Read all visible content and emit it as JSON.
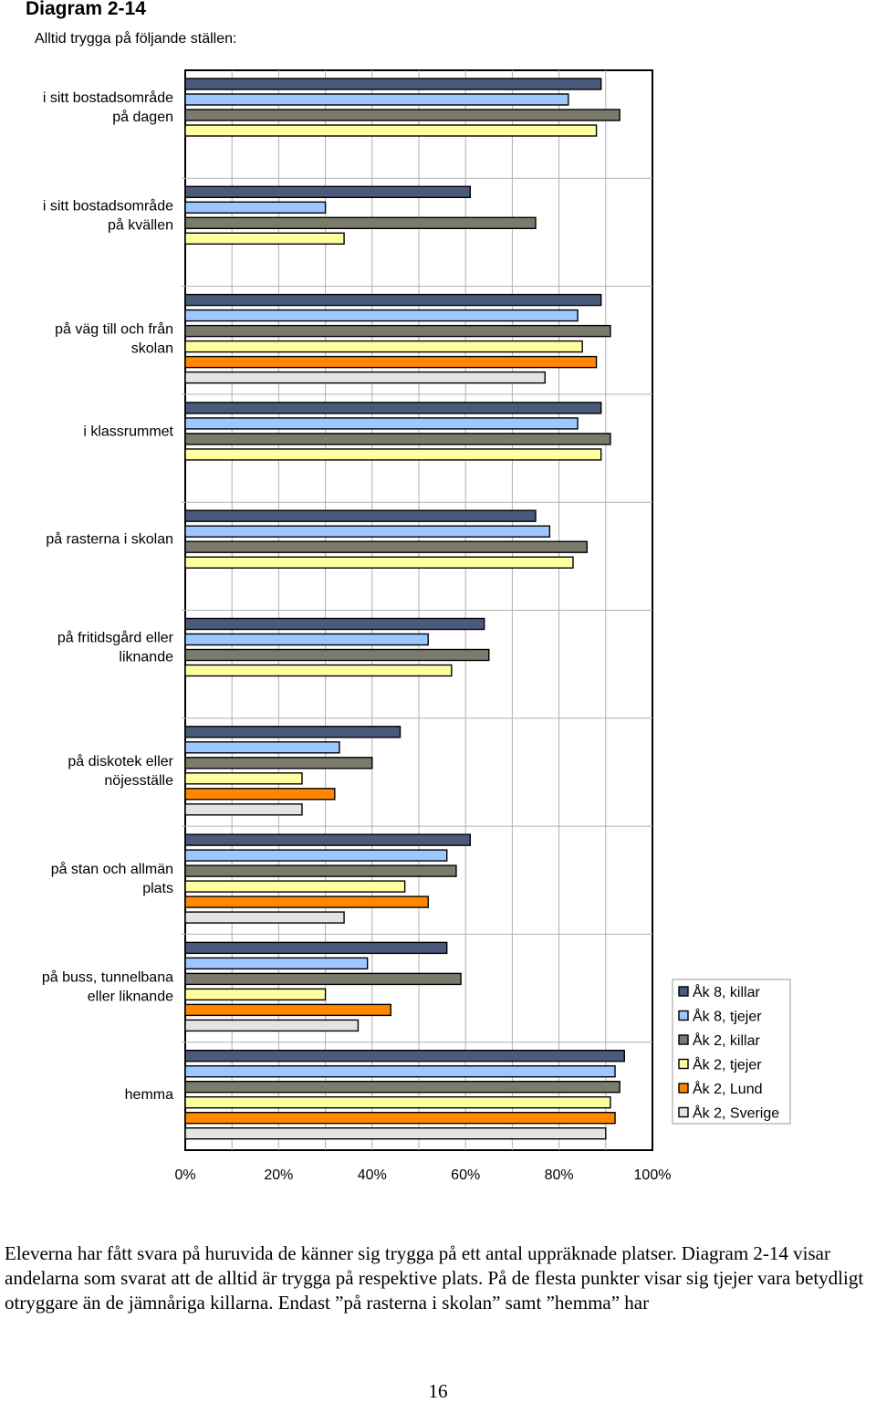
{
  "heading": "Diagram 2-14",
  "chart_data": {
    "type": "bar",
    "orientation": "horizontal",
    "title": "Alltid trygga på följande ställen:",
    "xlabel": "",
    "ylabel": "",
    "xlim": [
      0,
      100
    ],
    "x_tick_labels": [
      "0%",
      "20%",
      "40%",
      "60%",
      "80%",
      "100%"
    ],
    "grid": true,
    "legend_position": "right",
    "categories": [
      [
        "i sitt bostadsområde",
        "på dagen"
      ],
      [
        "i sitt bostadsområde",
        "på kvällen"
      ],
      [
        "på väg till och från",
        "skolan"
      ],
      [
        "i klassrummet"
      ],
      [
        "på rasterna i skolan"
      ],
      [
        "på fritidsgård eller",
        "liknande"
      ],
      [
        "på diskotek eller",
        "nöjesställe"
      ],
      [
        "på stan och allmän",
        "plats"
      ],
      [
        "på buss, tunnelbana",
        "eller liknande"
      ],
      [
        "hemma"
      ]
    ],
    "series": [
      {
        "name": "Åk 8, killar",
        "color": "#4a5a7a",
        "values": [
          89,
          61,
          89,
          89,
          75,
          64,
          46,
          61,
          56,
          94
        ]
      },
      {
        "name": "Åk 8, tjejer",
        "color": "#9cc8ff",
        "values": [
          82,
          30,
          84,
          84,
          78,
          52,
          33,
          56,
          39,
          92
        ]
      },
      {
        "name": "Åk 2, killar",
        "color": "#7b7b6b",
        "values": [
          93,
          75,
          91,
          91,
          86,
          65,
          40,
          58,
          59,
          93
        ]
      },
      {
        "name": "Åk 2, tjejer",
        "color": "#ffffa0",
        "values": [
          88,
          34,
          85,
          89,
          83,
          57,
          25,
          47,
          30,
          91
        ]
      },
      {
        "name": "Åk 2, Lund",
        "color": "#ff8800",
        "values": [
          null,
          null,
          88,
          null,
          null,
          null,
          32,
          52,
          44,
          92
        ]
      },
      {
        "name": "Åk 2, Sverige",
        "color": "#e4e4e4",
        "values": [
          null,
          null,
          77,
          null,
          null,
          null,
          25,
          34,
          37,
          90
        ]
      }
    ]
  },
  "paragraph": "Eleverna har fått svara på huruvida de känner sig trygga på ett antal uppräknade platser. Diagram 2-14 visar andelarna som svarat att de alltid är trygga på respektive plats. På de flesta punkter visar sig tjejer vara betydligt otryggare än de jämnåriga killarna. Endast ”på rasterna i skolan” samt ”hemma” har",
  "page_number": "16"
}
